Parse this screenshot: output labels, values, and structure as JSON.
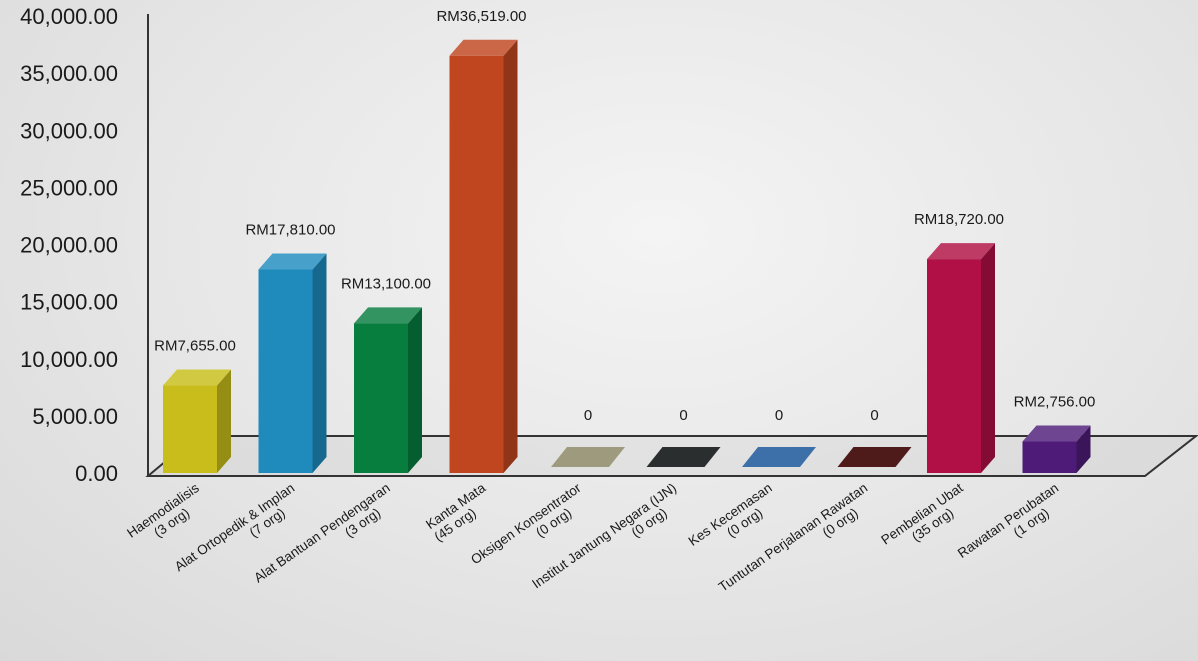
{
  "chart_data": {
    "type": "bar",
    "style": "3d",
    "title": "",
    "xlabel": "",
    "ylabel": "",
    "ylim": [
      0,
      40000
    ],
    "yticks": [
      "0.00",
      "5,000.00",
      "10,000.00",
      "15,000.00",
      "20,000.00",
      "25,000.00",
      "30,000.00",
      "35,000.00",
      "40,000.00"
    ],
    "grid": false,
    "bars": [
      {
        "name": "Haemodialisis",
        "count": "(3 org)",
        "value": 7655,
        "label": "RM7,655.00",
        "color": "#c8bd1a"
      },
      {
        "name": "Alat Ortopedik & Implan",
        "count": "(7 org)",
        "value": 17810,
        "label": "RM17,810.00",
        "color": "#1f8bbd"
      },
      {
        "name": "Alat Bantuan Pendengaran",
        "count": "(3 org)",
        "value": 13100,
        "label": "RM13,100.00",
        "color": "#077d3e"
      },
      {
        "name": "Kanta Mata",
        "count": "(45 org)",
        "value": 36519,
        "label": "RM36,519.00",
        "color": "#c0461f"
      },
      {
        "name": "Oksigen Konsentrator",
        "count": "(0 org)",
        "value": 0,
        "label": "0",
        "color": "#9e9a7e"
      },
      {
        "name": "Institut Jantung Negara (IJN)",
        "count": "(0 org)",
        "value": 0,
        "label": "0",
        "color": "#2b2e2e"
      },
      {
        "name": "Kes Kecemasan",
        "count": "(0 org)",
        "value": 0,
        "label": "0",
        "color": "#3d6fa8"
      },
      {
        "name": "Tuntutan Perjalanan Rawatan",
        "count": "(0 org)",
        "value": 0,
        "label": "0",
        "color": "#4e1a1a"
      },
      {
        "name": "Pembelian Ubat",
        "count": "(35 org)",
        "value": 18720,
        "label": "RM18,720.00",
        "color": "#b01045"
      },
      {
        "name": "Rawatan Perubatan",
        "count": "(1 org)",
        "value": 2756,
        "label": "RM2,756.00",
        "color": "#4e1c78"
      }
    ]
  }
}
